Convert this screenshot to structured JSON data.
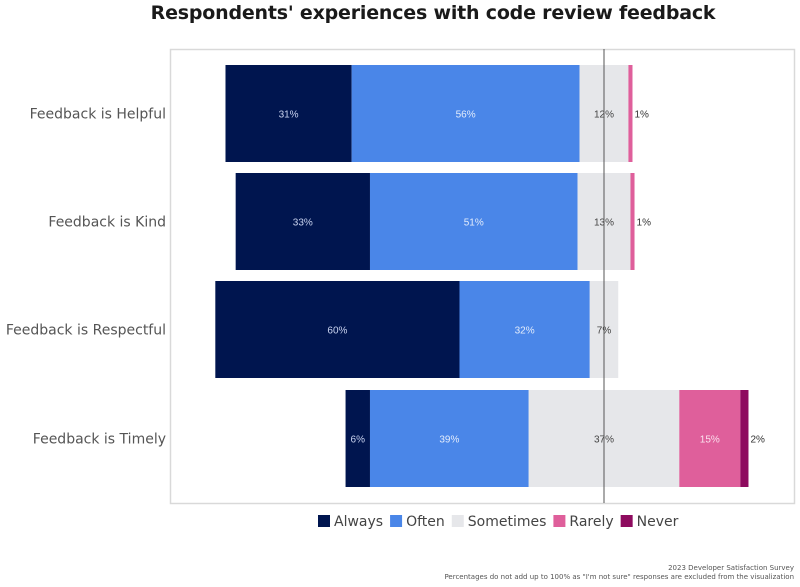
{
  "chart_data": {
    "type": "bar",
    "orientation": "horizontal",
    "stacked": true,
    "diverging": true,
    "diverging_center": "middle of Sometimes",
    "title": "Respondents' experiences with code review feedback",
    "xlabel": "",
    "ylabel": "",
    "grid": false,
    "legend_position": "bottom",
    "categories": [
      "Feedback is Helpful",
      "Feedback is Kind",
      "Feedback is Respectful",
      "Feedback is Timely"
    ],
    "series": [
      {
        "name": "Always",
        "color": "#00154f",
        "label_color": "#c9d3ef",
        "values": [
          31,
          33,
          60,
          6
        ]
      },
      {
        "name": "Often",
        "color": "#4a86e8",
        "label_color": "#e3ecfb",
        "values": [
          56,
          51,
          32,
          39
        ]
      },
      {
        "name": "Sometimes",
        "color": "#e6e7ea",
        "label_color": "#444444",
        "values": [
          12,
          13,
          7,
          37
        ]
      },
      {
        "name": "Rarely",
        "color": "#df5f9b",
        "label_color": "#fbe1ee",
        "values": [
          1,
          1,
          0,
          15
        ]
      },
      {
        "name": "Never",
        "color": "#8e0b5f",
        "label_color": "#333333",
        "values": [
          0,
          0,
          0,
          2
        ]
      }
    ],
    "value_suffix": "%"
  },
  "footer": {
    "source": "2023 Developer Satisfaction Survey",
    "note": "Percentages do not add up to 100% as \"I'm not sure\" responses are excluded from the visualization"
  }
}
